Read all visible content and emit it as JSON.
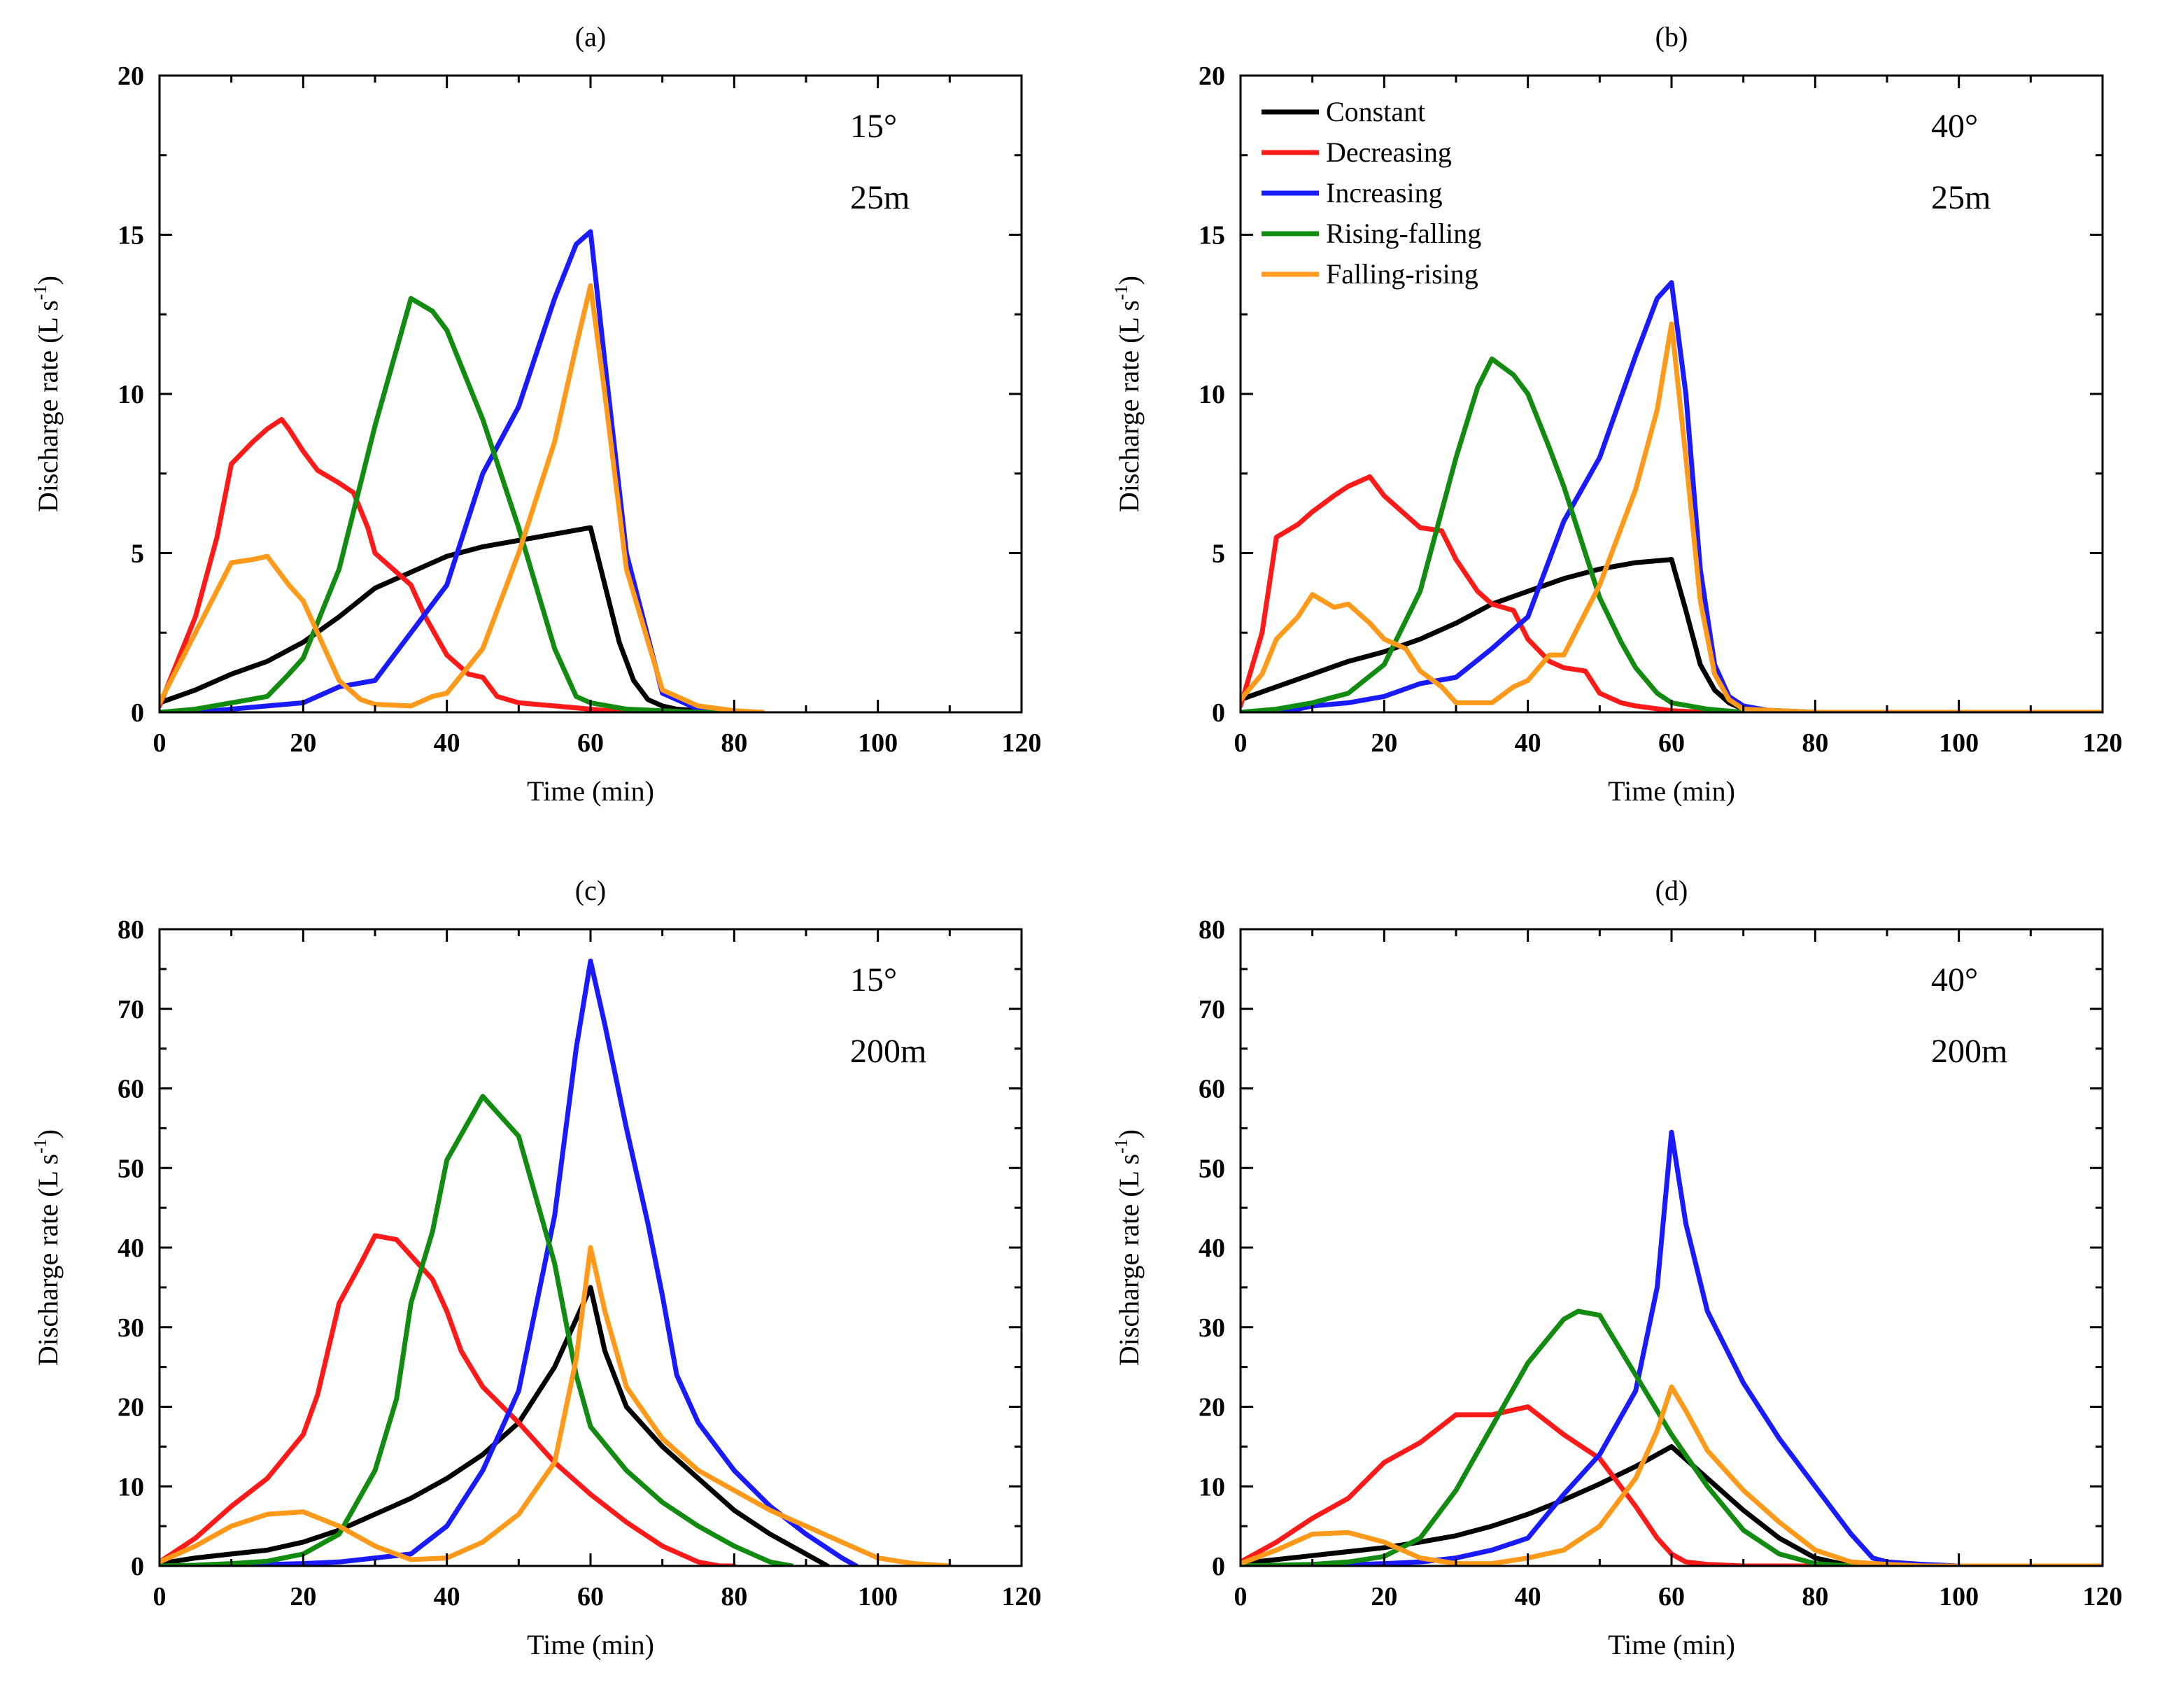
{
  "series_names": [
    "Constant",
    "Decreasing",
    "Increasing",
    "Rising-falling",
    "Falling-rising"
  ],
  "series_colors": [
    "#000000",
    "#ff1a1a",
    "#1a1aff",
    "#118c11",
    "#ff9919"
  ],
  "chart_data": [
    {
      "type": "line",
      "panel_label": "(a)",
      "slope": "15°",
      "length": "25m",
      "xlabel": "Time (min)",
      "ylabel": "Discharge rate (L s",
      "ylabel_sup": "-1",
      "ylabel_end": ")",
      "xlim": [
        0,
        120
      ],
      "ylim": [
        0,
        20
      ],
      "xticks": [
        "0",
        "20",
        "40",
        "60",
        "80",
        "100",
        "120"
      ],
      "yticks": [
        "0",
        "5",
        "10",
        "15",
        "20"
      ],
      "legend": false,
      "series": [
        {
          "name": "Constant",
          "x": [
            0,
            5,
            10,
            15,
            20,
            25,
            30,
            35,
            40,
            45,
            50,
            55,
            60,
            62,
            64,
            66,
            68,
            70,
            72,
            75,
            80
          ],
          "y": [
            0.3,
            0.7,
            1.2,
            1.6,
            2.2,
            3.0,
            3.9,
            4.4,
            4.9,
            5.2,
            5.4,
            5.6,
            5.8,
            4.0,
            2.2,
            1.0,
            0.4,
            0.2,
            0.1,
            0.05,
            0
          ]
        },
        {
          "name": "Decreasing",
          "x": [
            0,
            5,
            8,
            10,
            13,
            15,
            17,
            18,
            20,
            22,
            25,
            27,
            29,
            30,
            32,
            35,
            37,
            40,
            43,
            45,
            47,
            50,
            55,
            60,
            65
          ],
          "y": [
            0.2,
            3.0,
            5.5,
            7.8,
            8.5,
            8.9,
            9.2,
            8.9,
            8.2,
            7.6,
            7.2,
            6.9,
            5.8,
            5.0,
            4.6,
            4.0,
            3.0,
            1.8,
            1.2,
            1.1,
            0.5,
            0.3,
            0.2,
            0.1,
            0
          ]
        },
        {
          "name": "Increasing",
          "x": [
            0,
            5,
            10,
            15,
            20,
            25,
            30,
            35,
            40,
            45,
            50,
            55,
            58,
            60,
            62,
            65,
            70,
            75,
            80
          ],
          "y": [
            0,
            0,
            0.1,
            0.2,
            0.3,
            0.8,
            1.0,
            2.5,
            4.0,
            7.5,
            9.6,
            13.0,
            14.7,
            15.1,
            11.0,
            5.0,
            0.6,
            0.1,
            0
          ]
        },
        {
          "name": "Rising-falling",
          "x": [
            0,
            5,
            10,
            15,
            18,
            20,
            25,
            30,
            35,
            38,
            40,
            45,
            50,
            55,
            58,
            60,
            65,
            70,
            75,
            80
          ],
          "y": [
            0,
            0.1,
            0.3,
            0.5,
            1.2,
            1.7,
            4.5,
            9.0,
            13.0,
            12.6,
            12.0,
            9.2,
            5.8,
            2.0,
            0.5,
            0.3,
            0.1,
            0.05,
            0,
            0
          ]
        },
        {
          "name": "Falling-rising",
          "x": [
            0,
            5,
            10,
            13,
            15,
            18,
            20,
            23,
            25,
            28,
            30,
            35,
            38,
            40,
            45,
            50,
            55,
            58,
            60,
            62,
            65,
            70,
            75,
            80,
            84
          ],
          "y": [
            0.3,
            2.5,
            4.7,
            4.8,
            4.9,
            4.0,
            3.5,
            2.0,
            1.0,
            0.4,
            0.25,
            0.2,
            0.5,
            0.6,
            2.0,
            5.0,
            8.5,
            11.5,
            13.4,
            10.0,
            4.5,
            0.7,
            0.2,
            0.05,
            0
          ]
        }
      ]
    },
    {
      "type": "line",
      "panel_label": "(b)",
      "slope": "40°",
      "length": "25m",
      "xlabel": "Time (min)",
      "ylabel": "Discharge rate (L s",
      "ylabel_sup": "-1",
      "ylabel_end": ")",
      "xlim": [
        0,
        120
      ],
      "ylim": [
        0,
        20
      ],
      "xticks": [
        "0",
        "20",
        "40",
        "60",
        "80",
        "100",
        "120"
      ],
      "yticks": [
        "0",
        "5",
        "10",
        "15",
        "20"
      ],
      "legend": true,
      "series": [
        {
          "name": "Constant",
          "x": [
            0,
            5,
            10,
            15,
            20,
            25,
            30,
            35,
            40,
            45,
            50,
            55,
            60,
            62,
            64,
            66,
            68,
            70,
            75,
            80,
            120
          ],
          "y": [
            0.4,
            0.8,
            1.2,
            1.6,
            1.9,
            2.3,
            2.8,
            3.4,
            3.8,
            4.2,
            4.5,
            4.7,
            4.8,
            3.2,
            1.5,
            0.7,
            0.3,
            0.1,
            0.05,
            0,
            0
          ]
        },
        {
          "name": "Decreasing",
          "x": [
            0,
            3,
            5,
            8,
            10,
            13,
            15,
            18,
            20,
            23,
            25,
            28,
            30,
            33,
            35,
            38,
            40,
            43,
            45,
            48,
            50,
            53,
            55,
            60,
            65,
            120
          ],
          "y": [
            0.2,
            2.5,
            5.5,
            5.9,
            6.3,
            6.8,
            7.1,
            7.4,
            6.8,
            6.2,
            5.8,
            5.7,
            4.8,
            3.8,
            3.4,
            3.2,
            2.3,
            1.6,
            1.4,
            1.3,
            0.6,
            0.3,
            0.2,
            0.05,
            0,
            0
          ]
        },
        {
          "name": "Increasing",
          "x": [
            0,
            5,
            8,
            10,
            15,
            20,
            25,
            30,
            35,
            40,
            45,
            50,
            55,
            58,
            60,
            62,
            64,
            66,
            68,
            70,
            75,
            120
          ],
          "y": [
            0,
            0,
            0.1,
            0.2,
            0.3,
            0.5,
            0.9,
            1.1,
            2.0,
            3.0,
            6.0,
            8.0,
            11.2,
            13.0,
            13.5,
            10.0,
            4.5,
            1.5,
            0.5,
            0.2,
            0,
            0
          ]
        },
        {
          "name": "Rising-falling",
          "x": [
            0,
            5,
            10,
            15,
            20,
            25,
            30,
            33,
            35,
            38,
            40,
            43,
            45,
            48,
            50,
            53,
            55,
            58,
            60,
            65,
            70,
            120
          ],
          "y": [
            0,
            0.1,
            0.3,
            0.6,
            1.5,
            3.8,
            8.0,
            10.2,
            11.1,
            10.6,
            10.0,
            8.3,
            7.1,
            5.0,
            3.6,
            2.2,
            1.4,
            0.6,
            0.3,
            0.1,
            0,
            0
          ]
        },
        {
          "name": "Falling-rising",
          "x": [
            0,
            3,
            5,
            8,
            10,
            13,
            15,
            18,
            20,
            23,
            25,
            28,
            30,
            35,
            38,
            40,
            43,
            45,
            50,
            55,
            58,
            60,
            62,
            64,
            66,
            68,
            70,
            75,
            80,
            120
          ],
          "y": [
            0.4,
            1.2,
            2.3,
            3.0,
            3.7,
            3.3,
            3.4,
            2.8,
            2.3,
            2.0,
            1.3,
            0.8,
            0.3,
            0.3,
            0.8,
            1.0,
            1.8,
            1.8,
            4.0,
            7.0,
            9.5,
            12.2,
            8.0,
            3.5,
            1.2,
            0.4,
            0.1,
            0.05,
            0,
            0
          ]
        }
      ]
    },
    {
      "type": "line",
      "panel_label": "(c)",
      "slope": "15°",
      "length": "200m",
      "xlabel": "Time (min)",
      "ylabel": "Discharge rate (L s",
      "ylabel_sup": "-1",
      "ylabel_end": ")",
      "xlim": [
        0,
        120
      ],
      "ylim": [
        0,
        80
      ],
      "xticks": [
        "0",
        "20",
        "40",
        "60",
        "80",
        "100",
        "120"
      ],
      "yticks": [
        "0",
        "10",
        "20",
        "30",
        "40",
        "50",
        "60",
        "70",
        "80"
      ],
      "legend": false,
      "series": [
        {
          "name": "Constant",
          "x": [
            0,
            5,
            10,
            15,
            20,
            25,
            30,
            35,
            40,
            45,
            50,
            55,
            58,
            60,
            62,
            65,
            70,
            75,
            80,
            85,
            90,
            93
          ],
          "y": [
            0.3,
            1.0,
            1.5,
            2.0,
            3.0,
            4.5,
            6.5,
            8.5,
            11.0,
            14.0,
            18.0,
            25.0,
            31.0,
            35.0,
            27.0,
            20.0,
            15.0,
            11.0,
            7.0,
            4.0,
            1.5,
            0
          ]
        },
        {
          "name": "Decreasing",
          "x": [
            0,
            5,
            10,
            15,
            20,
            22,
            25,
            28,
            30,
            33,
            35,
            38,
            40,
            42,
            45,
            50,
            55,
            60,
            65,
            70,
            75,
            78,
            80
          ],
          "y": [
            0.5,
            3.5,
            7.5,
            11.0,
            16.5,
            21.5,
            33.0,
            38.0,
            41.5,
            41.0,
            39.0,
            36.0,
            32.0,
            27.0,
            22.5,
            18.0,
            13.0,
            9.0,
            5.5,
            2.5,
            0.5,
            0,
            0
          ]
        },
        {
          "name": "Increasing",
          "x": [
            0,
            10,
            15,
            20,
            25,
            30,
            35,
            40,
            45,
            50,
            55,
            58,
            60,
            62,
            65,
            68,
            70,
            72,
            75,
            80,
            85,
            90,
            95,
            97
          ],
          "y": [
            0,
            0,
            0.2,
            0.3,
            0.5,
            1.0,
            1.5,
            5.0,
            12.0,
            22.0,
            44.0,
            65.0,
            76.0,
            68.0,
            55.0,
            43.0,
            34.0,
            24.0,
            18.0,
            12.0,
            7.5,
            4.0,
            1.0,
            0
          ]
        },
        {
          "name": "Rising-falling",
          "x": [
            0,
            5,
            10,
            15,
            20,
            25,
            30,
            33,
            35,
            38,
            40,
            45,
            50,
            55,
            58,
            60,
            65,
            70,
            75,
            80,
            85,
            88
          ],
          "y": [
            0,
            0.1,
            0.3,
            0.6,
            1.5,
            4.0,
            12.0,
            21.0,
            33.0,
            42.0,
            51.0,
            59.0,
            54.0,
            38.0,
            24.0,
            17.5,
            12.0,
            8.0,
            5.0,
            2.5,
            0.5,
            0
          ]
        },
        {
          "name": "Falling-rising",
          "x": [
            0,
            5,
            10,
            15,
            20,
            25,
            30,
            35,
            40,
            45,
            50,
            55,
            58,
            60,
            62,
            65,
            70,
            75,
            80,
            85,
            90,
            95,
            100,
            105,
            110
          ],
          "y": [
            0.5,
            2.5,
            5.0,
            6.5,
            6.8,
            5.0,
            2.5,
            0.8,
            1.0,
            3.0,
            6.5,
            13.0,
            26.0,
            40.0,
            32.0,
            22.5,
            16.0,
            12.0,
            9.5,
            7.0,
            5.0,
            3.0,
            1.0,
            0.3,
            0
          ]
        }
      ]
    },
    {
      "type": "line",
      "panel_label": "(d)",
      "slope": "40°",
      "length": "200m",
      "xlabel": "Time (min)",
      "ylabel": "Discharge rate (L s",
      "ylabel_sup": "-1",
      "ylabel_end": ")",
      "xlim": [
        0,
        120
      ],
      "ylim": [
        0,
        80
      ],
      "xticks": [
        "0",
        "20",
        "40",
        "60",
        "80",
        "100",
        "120"
      ],
      "yticks": [
        "0",
        "10",
        "20",
        "30",
        "40",
        "50",
        "60",
        "70",
        "80"
      ],
      "legend": false,
      "series": [
        {
          "name": "Constant",
          "x": [
            0,
            5,
            10,
            15,
            20,
            25,
            30,
            35,
            40,
            45,
            50,
            55,
            60,
            65,
            70,
            75,
            80,
            85,
            120
          ],
          "y": [
            0.3,
            0.8,
            1.3,
            1.8,
            2.3,
            3.0,
            3.8,
            5.0,
            6.5,
            8.3,
            10.3,
            12.5,
            15.0,
            11.0,
            7.0,
            3.5,
            1.0,
            0,
            0
          ]
        },
        {
          "name": "Decreasing",
          "x": [
            0,
            5,
            10,
            15,
            20,
            25,
            30,
            35,
            40,
            45,
            50,
            55,
            58,
            60,
            62,
            65,
            70,
            75,
            120
          ],
          "y": [
            0.5,
            3.0,
            6.0,
            8.5,
            13.0,
            15.5,
            19.0,
            19.0,
            20.0,
            16.5,
            13.5,
            7.5,
            3.5,
            1.5,
            0.5,
            0.2,
            0,
            0,
            0
          ]
        },
        {
          "name": "Increasing",
          "x": [
            0,
            10,
            20,
            25,
            30,
            35,
            40,
            45,
            50,
            55,
            58,
            60,
            62,
            65,
            70,
            75,
            80,
            85,
            88,
            90,
            95,
            100,
            120
          ],
          "y": [
            0,
            0,
            0.3,
            0.5,
            1.0,
            2.0,
            3.5,
            9.0,
            14.0,
            22.0,
            35.0,
            54.5,
            43.0,
            32.0,
            23.0,
            16.0,
            10.0,
            4.0,
            1.0,
            0.5,
            0.2,
            0,
            0
          ]
        },
        {
          "name": "Rising-falling",
          "x": [
            0,
            10,
            15,
            20,
            25,
            30,
            35,
            40,
            45,
            47,
            50,
            55,
            60,
            65,
            70,
            75,
            80,
            85,
            120
          ],
          "y": [
            0,
            0.2,
            0.5,
            1.2,
            3.5,
            9.5,
            17.5,
            25.5,
            31.0,
            32.0,
            31.5,
            24.0,
            16.5,
            10.0,
            4.5,
            1.5,
            0.3,
            0,
            0
          ]
        },
        {
          "name": "Falling-rising",
          "x": [
            0,
            5,
            10,
            15,
            20,
            25,
            30,
            35,
            40,
            45,
            50,
            55,
            58,
            60,
            62,
            65,
            70,
            75,
            80,
            85,
            90,
            95,
            100,
            120
          ],
          "y": [
            0.3,
            2.0,
            4.0,
            4.2,
            3.0,
            1.0,
            0.3,
            0.3,
            1.0,
            2.0,
            5.0,
            11.0,
            17.0,
            22.5,
            19.5,
            14.5,
            9.5,
            5.5,
            2.0,
            0.5,
            0.2,
            0,
            0,
            0
          ]
        }
      ]
    }
  ]
}
